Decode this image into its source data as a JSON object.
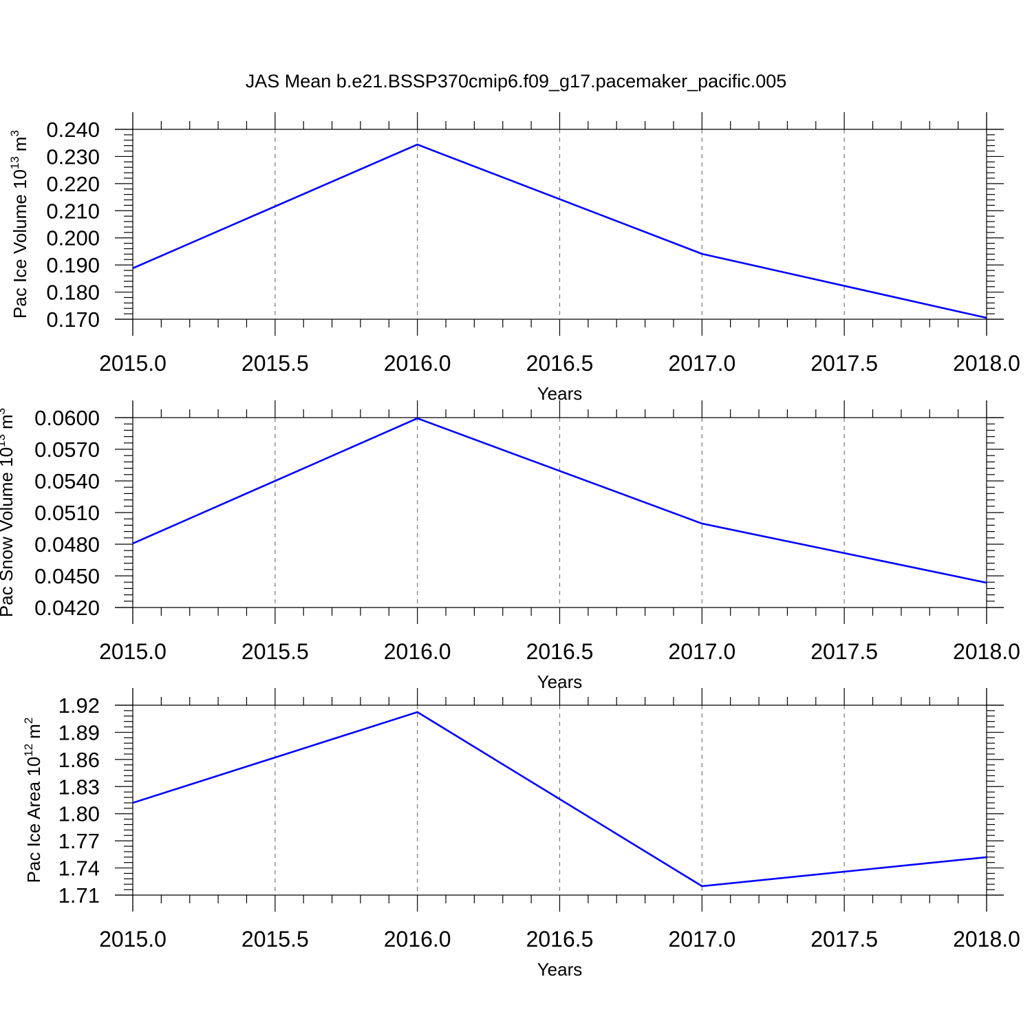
{
  "title": "JAS Mean b.e21.BSSP370cmip6.f09_g17.pacemaker_pacific.005",
  "chart_data": [
    {
      "type": "line",
      "xlabel": "Years",
      "ylabel": {
        "text": "Pac Ice Volume 10",
        "exp": "13",
        "unit": "m",
        "unit_exp": "3"
      },
      "x": [
        2015,
        2016,
        2017,
        2018
      ],
      "values": [
        0.1888,
        0.2344,
        0.1941,
        0.1705
      ],
      "color": "#0000ff",
      "xlim": [
        2015,
        2018
      ],
      "xticks": [
        {
          "value": 2015,
          "label": "2015.0"
        },
        {
          "value": 2015.5,
          "label": "2015.5"
        },
        {
          "value": 2016,
          "label": "2016.0"
        },
        {
          "value": 2016.5,
          "label": "2016.5"
        },
        {
          "value": 2017,
          "label": "2017.0"
        },
        {
          "value": 2017.5,
          "label": "2017.5"
        },
        {
          "value": 2018,
          "label": "2018.0"
        }
      ],
      "ylim": [
        0.17,
        0.24
      ],
      "yticks": [
        {
          "value": 0.17,
          "label": "0.170"
        },
        {
          "value": 0.18,
          "label": "0.180"
        },
        {
          "value": 0.19,
          "label": "0.190"
        },
        {
          "value": 0.2,
          "label": "0.200"
        },
        {
          "value": 0.21,
          "label": "0.210"
        },
        {
          "value": 0.22,
          "label": "0.220"
        },
        {
          "value": 0.23,
          "label": "0.230"
        },
        {
          "value": 0.24,
          "label": "0.240"
        }
      ],
      "grid": "x"
    },
    {
      "type": "line",
      "xlabel": "Years",
      "ylabel": {
        "text": "Pac Snow Volume 10",
        "exp": "13",
        "unit": "m",
        "unit_exp": "3"
      },
      "x": [
        2015,
        2016,
        2017,
        2018
      ],
      "values": [
        0.04807,
        0.05993,
        0.04996,
        0.04435
      ],
      "color": "#0000ff",
      "xlim": [
        2015,
        2018
      ],
      "xticks": [
        {
          "value": 2015,
          "label": "2015.0"
        },
        {
          "value": 2015.5,
          "label": "2015.5"
        },
        {
          "value": 2016,
          "label": "2016.0"
        },
        {
          "value": 2016.5,
          "label": "2016.5"
        },
        {
          "value": 2017,
          "label": "2017.0"
        },
        {
          "value": 2017.5,
          "label": "2017.5"
        },
        {
          "value": 2018,
          "label": "2018.0"
        }
      ],
      "ylim": [
        0.042,
        0.06
      ],
      "yticks": [
        {
          "value": 0.042,
          "label": "0.0420"
        },
        {
          "value": 0.045,
          "label": "0.0450"
        },
        {
          "value": 0.048,
          "label": "0.0480"
        },
        {
          "value": 0.051,
          "label": "0.0510"
        },
        {
          "value": 0.054,
          "label": "0.0540"
        },
        {
          "value": 0.057,
          "label": "0.0570"
        },
        {
          "value": 0.06,
          "label": "0.0600"
        }
      ],
      "grid": "x"
    },
    {
      "type": "line",
      "xlabel": "Years",
      "ylabel": {
        "text": "Pac Ice Area 10",
        "exp": "12",
        "unit": "m",
        "unit_exp": "2"
      },
      "x": [
        2015,
        2016,
        2017,
        2018
      ],
      "values": [
        1.812,
        1.9124,
        1.7199,
        1.7519
      ],
      "color": "#0000ff",
      "xlim": [
        2015,
        2018
      ],
      "xticks": [
        {
          "value": 2015,
          "label": "2015.0"
        },
        {
          "value": 2015.5,
          "label": "2015.5"
        },
        {
          "value": 2016,
          "label": "2016.0"
        },
        {
          "value": 2016.5,
          "label": "2016.5"
        },
        {
          "value": 2017,
          "label": "2017.0"
        },
        {
          "value": 2017.5,
          "label": "2017.5"
        },
        {
          "value": 2018,
          "label": "2018.0"
        }
      ],
      "ylim": [
        1.71,
        1.92
      ],
      "yticks": [
        1.71,
        1.74,
        1.77,
        {
          "value": 1.8,
          "label": "1.80"
        },
        1.83,
        1.86,
        1.89,
        1.92
      ],
      "grid": "x"
    }
  ]
}
